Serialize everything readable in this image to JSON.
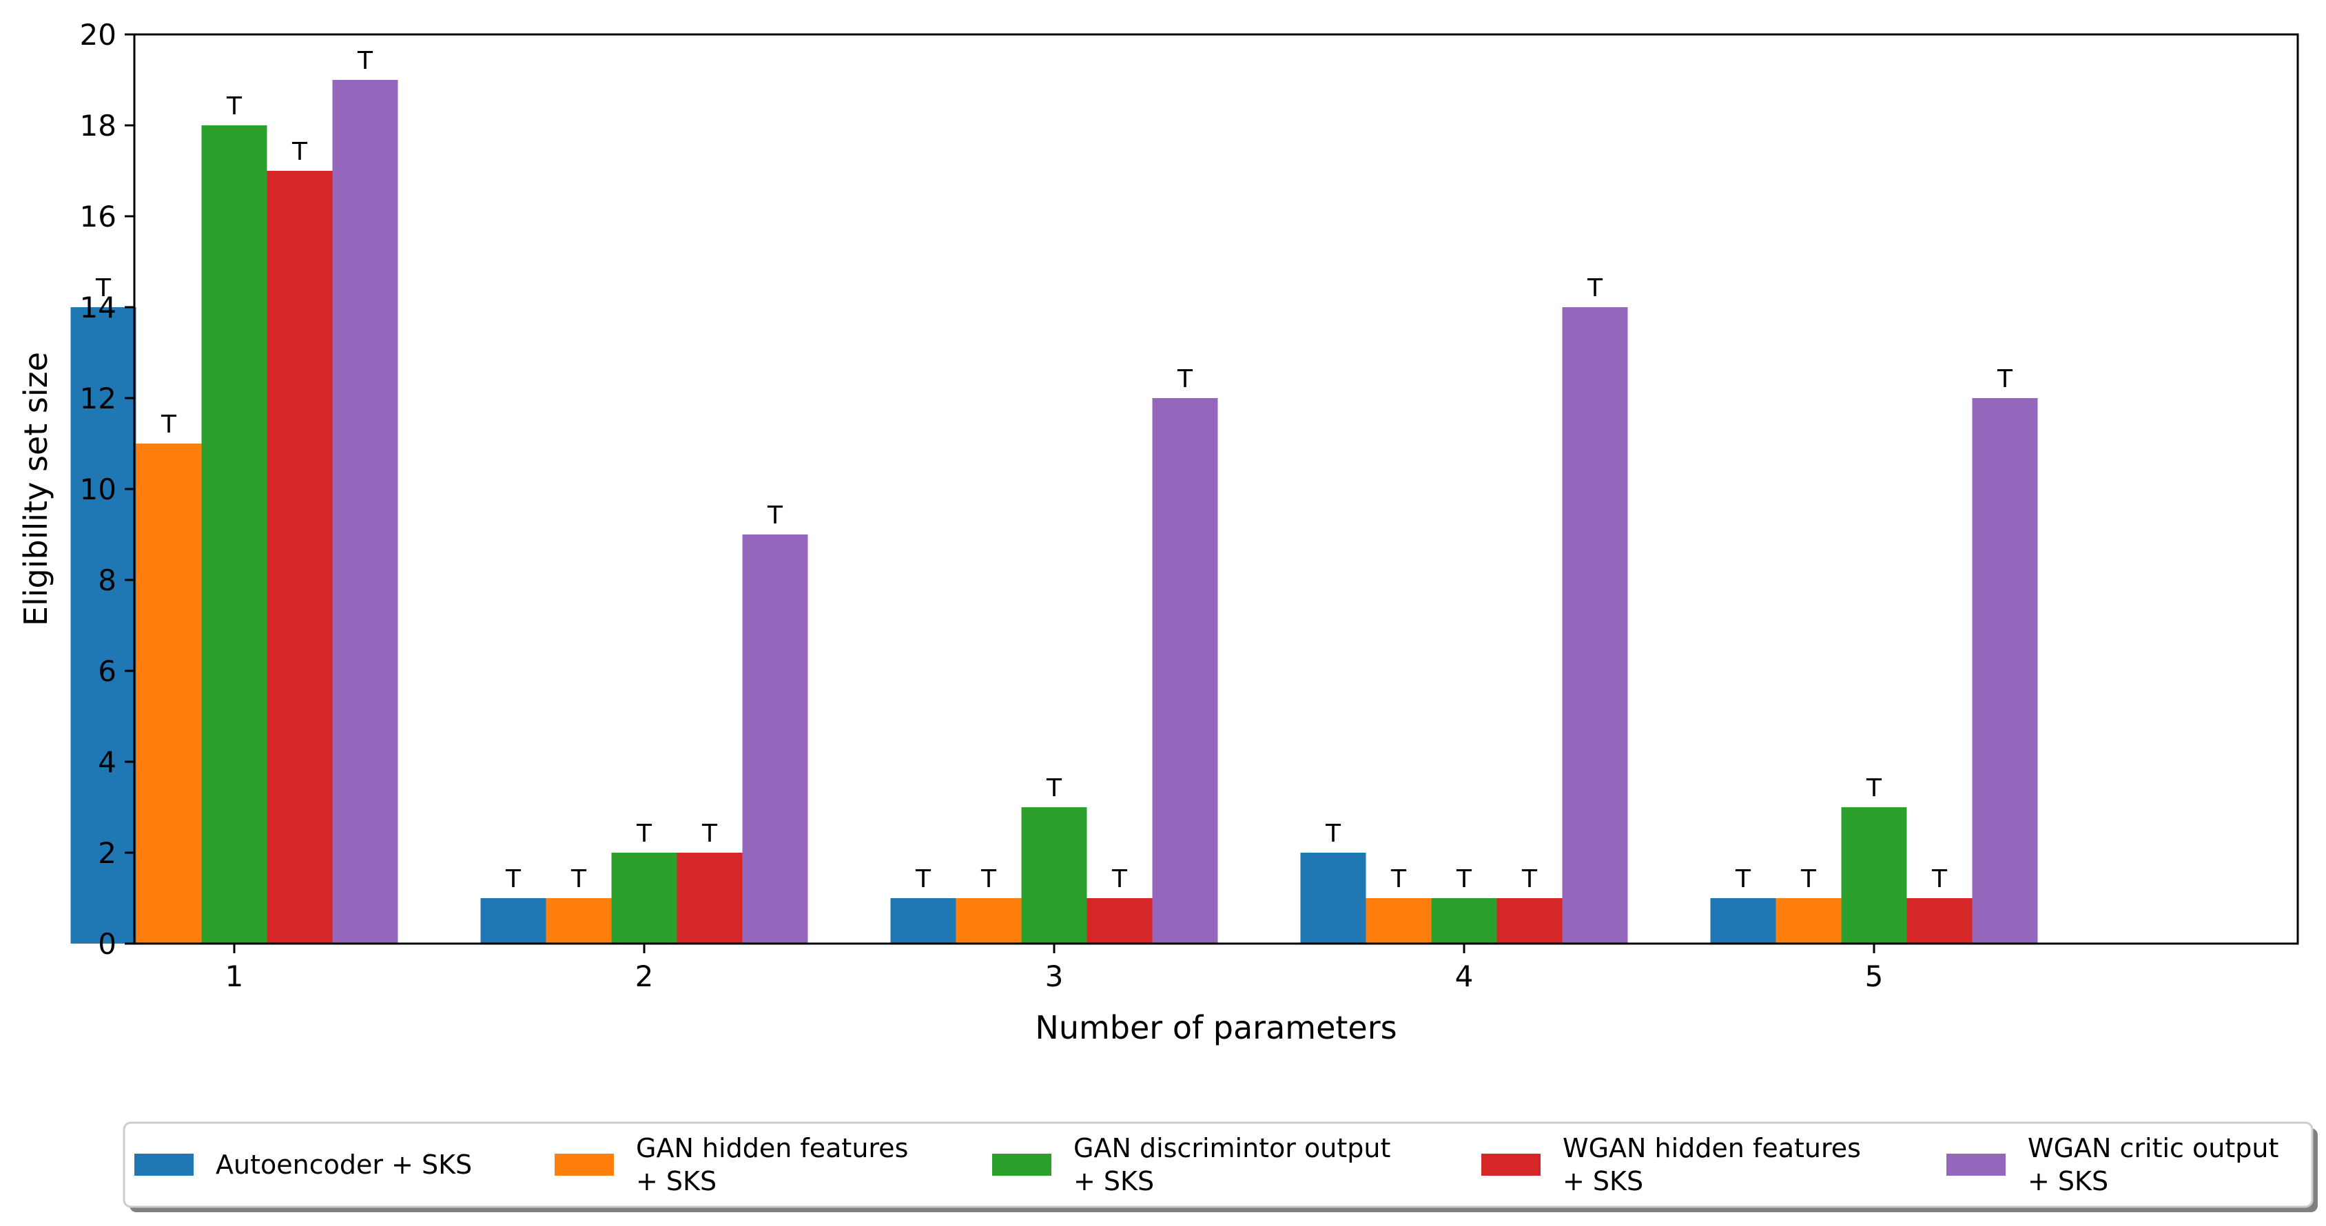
{
  "chart_data": {
    "type": "bar",
    "title": "",
    "xlabel": "Number of parameters",
    "ylabel": "Eligibility set size",
    "categories": [
      "1",
      "2",
      "3",
      "4",
      "5"
    ],
    "ylim": [
      0,
      20
    ],
    "yticks": [
      "0",
      "2",
      "4",
      "6",
      "8",
      "10",
      "12",
      "14",
      "16",
      "18",
      "20"
    ],
    "grid": false,
    "legend_position": "bottom",
    "series": [
      {
        "name": "Autoencoder + SKS",
        "legend_lines": [
          "Autoencoder + SKS"
        ],
        "color": "#1f77b4",
        "values": [
          14,
          1,
          1,
          2,
          1
        ],
        "labels": [
          "T",
          "T",
          "T",
          "T",
          "T"
        ]
      },
      {
        "name": "GAN hidden features + SKS",
        "legend_lines": [
          "GAN hidden features",
          "+ SKS"
        ],
        "color": "#ff7f0e",
        "values": [
          11,
          1,
          1,
          1,
          1
        ],
        "labels": [
          "T",
          "T",
          "T",
          "T",
          "T"
        ]
      },
      {
        "name": "GAN discrimintor output + SKS",
        "legend_lines": [
          "GAN discrimintor output",
          "+ SKS"
        ],
        "color": "#2ca02c",
        "values": [
          18,
          2,
          3,
          1,
          3
        ],
        "labels": [
          "T",
          "T",
          "T",
          "T",
          "T"
        ]
      },
      {
        "name": "WGAN hidden features + SKS",
        "legend_lines": [
          "WGAN hidden features",
          "+ SKS"
        ],
        "color": "#d62728",
        "values": [
          17,
          2,
          1,
          1,
          1
        ],
        "labels": [
          "T",
          "T",
          "T",
          "T",
          "T"
        ]
      },
      {
        "name": "WGAN critic output + SKS",
        "legend_lines": [
          "WGAN critic output",
          "+ SKS"
        ],
        "color": "#9467bd",
        "values": [
          19,
          9,
          12,
          14,
          12
        ],
        "labels": [
          "T",
          "T",
          "T",
          "T",
          "T"
        ]
      }
    ]
  }
}
